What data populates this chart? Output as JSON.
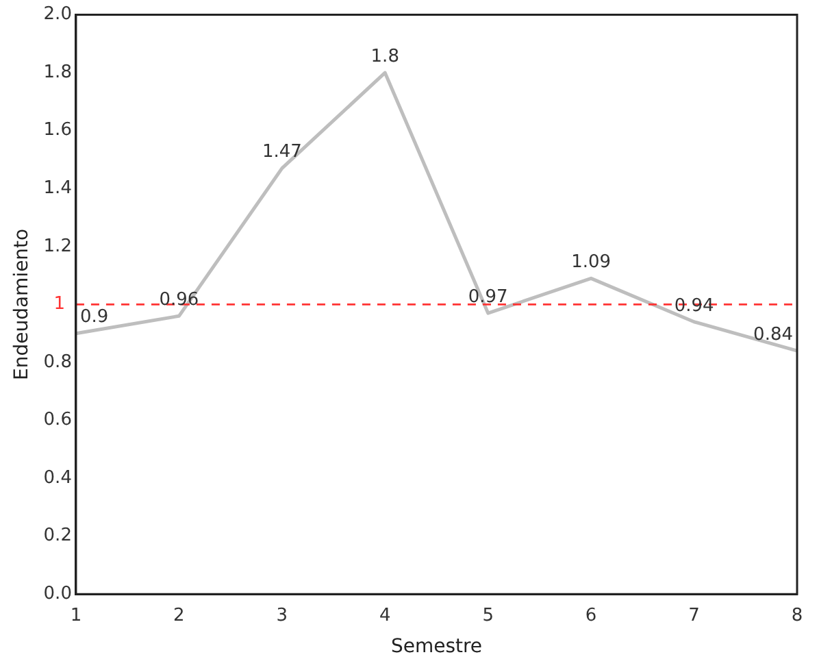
{
  "chart_data": {
    "type": "line",
    "xlabel": "Semestre",
    "ylabel": "Endeudamiento",
    "x": [
      1,
      2,
      3,
      4,
      5,
      6,
      7,
      8
    ],
    "values": [
      0.9,
      0.96,
      1.47,
      1.8,
      0.97,
      1.09,
      0.94,
      0.84
    ],
    "color": "#bebebe",
    "marker": "none",
    "line_style": "solid",
    "data_labels": true,
    "xlim": [
      1,
      8
    ],
    "xticks": [
      1,
      2,
      3,
      4,
      5,
      6,
      7,
      8
    ],
    "ylim": [
      0,
      2
    ],
    "yticks": [
      {
        "value": 0,
        "label": "0.0"
      },
      0.2,
      0.4,
      0.6,
      0.8,
      1.2,
      1.4,
      1.6,
      1.8,
      {
        "value": 2,
        "label": "2.0"
      }
    ],
    "ref_lines": [
      {
        "axis": "y",
        "value": 1,
        "label": "1",
        "color": "#ff3333",
        "line_style": "dashed"
      }
    ],
    "grid": false,
    "legend": false
  }
}
